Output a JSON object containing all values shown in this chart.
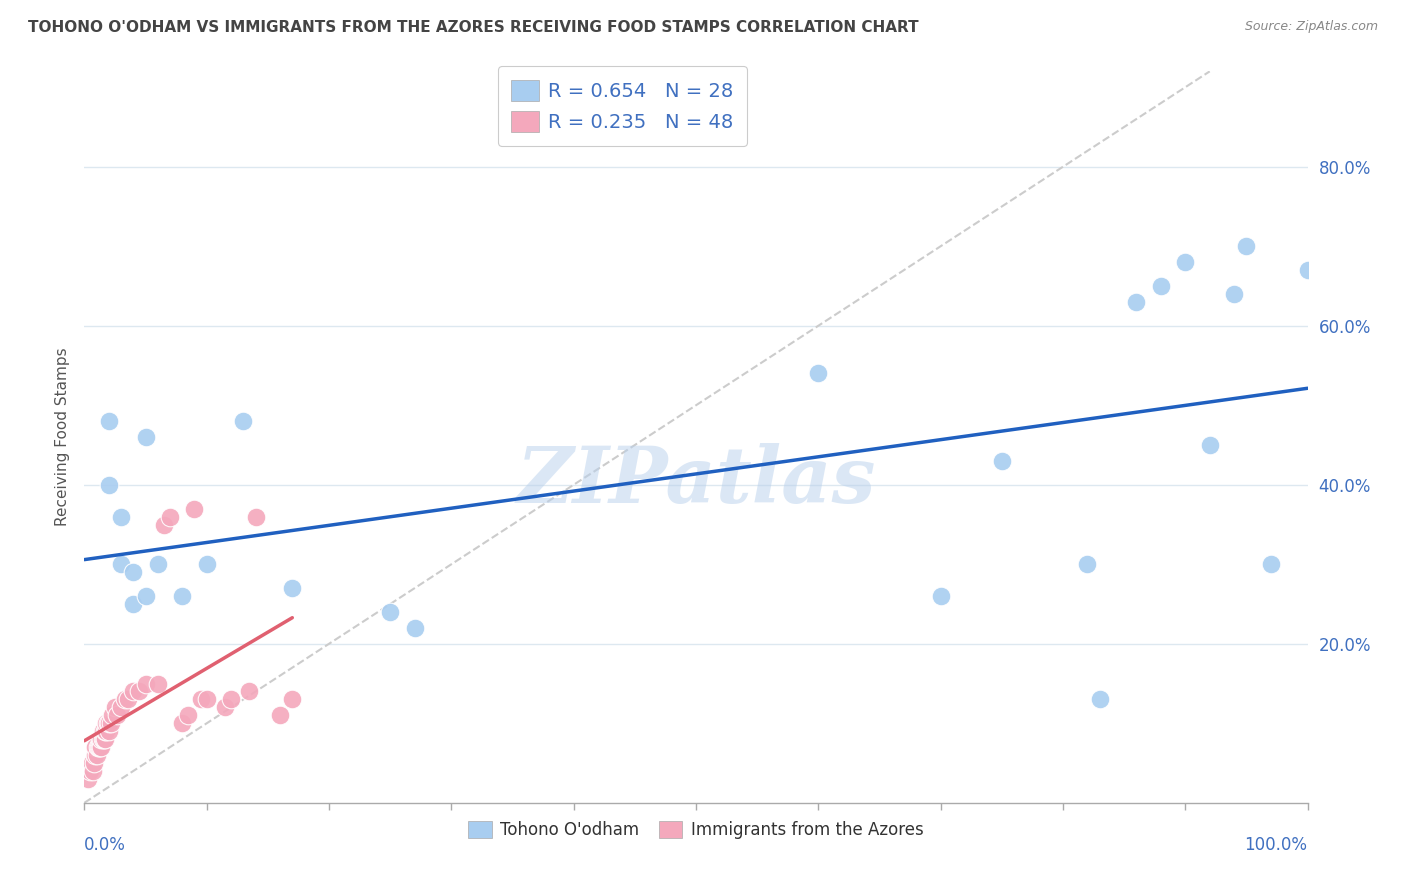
{
  "title": "TOHONO O'ODHAM VS IMMIGRANTS FROM THE AZORES RECEIVING FOOD STAMPS CORRELATION CHART",
  "source": "Source: ZipAtlas.com",
  "ylabel": "Receiving Food Stamps",
  "watermark": "ZIPatlas",
  "blue_color": "#a8cdf0",
  "pink_color": "#f4a8bc",
  "blue_line_color": "#2060c0",
  "pink_line_color": "#e06070",
  "diag_color": "#cccccc",
  "legend_r_blue": "R = 0.654",
  "legend_n_blue": "N = 28",
  "legend_r_pink": "R = 0.235",
  "legend_n_pink": "N = 48",
  "legend_label_blue": "Tohono O'odham",
  "legend_label_pink": "Immigrants from the Azores",
  "blue_x": [
    0.02,
    0.02,
    0.03,
    0.03,
    0.04,
    0.05,
    0.06,
    0.08,
    0.1,
    0.13,
    0.17,
    0.25,
    0.27,
    0.6,
    0.7,
    0.75,
    0.82,
    0.83,
    0.86,
    0.88,
    0.9,
    0.92,
    0.94,
    0.95,
    0.97,
    1.0,
    0.04,
    0.05
  ],
  "blue_y": [
    0.48,
    0.4,
    0.36,
    0.3,
    0.25,
    0.46,
    0.3,
    0.26,
    0.3,
    0.48,
    0.27,
    0.24,
    0.22,
    0.54,
    0.26,
    0.43,
    0.3,
    0.13,
    0.63,
    0.65,
    0.68,
    0.45,
    0.64,
    0.7,
    0.3,
    0.67,
    0.29,
    0.26
  ],
  "pink_x": [
    0.003,
    0.005,
    0.006,
    0.007,
    0.008,
    0.009,
    0.009,
    0.01,
    0.011,
    0.012,
    0.013,
    0.013,
    0.014,
    0.014,
    0.015,
    0.015,
    0.016,
    0.017,
    0.017,
    0.018,
    0.018,
    0.019,
    0.02,
    0.02,
    0.022,
    0.023,
    0.025,
    0.027,
    0.03,
    0.033,
    0.036,
    0.04,
    0.045,
    0.05,
    0.06,
    0.065,
    0.07,
    0.08,
    0.085,
    0.09,
    0.095,
    0.1,
    0.115,
    0.12,
    0.135,
    0.14,
    0.16,
    0.17
  ],
  "pink_y": [
    0.03,
    0.04,
    0.05,
    0.04,
    0.05,
    0.06,
    0.07,
    0.06,
    0.07,
    0.07,
    0.07,
    0.08,
    0.07,
    0.08,
    0.08,
    0.09,
    0.08,
    0.08,
    0.09,
    0.09,
    0.1,
    0.1,
    0.09,
    0.1,
    0.1,
    0.11,
    0.12,
    0.11,
    0.12,
    0.13,
    0.13,
    0.14,
    0.14,
    0.15,
    0.15,
    0.35,
    0.36,
    0.1,
    0.11,
    0.37,
    0.13,
    0.13,
    0.12,
    0.13,
    0.14,
    0.36,
    0.11,
    0.13
  ],
  "background_color": "#ffffff",
  "grid_color": "#dde8f0",
  "title_color": "#444444",
  "axis_label_color": "#4070c0",
  "legend_text_color": "#4070c0",
  "xlim": [
    0.0,
    1.0
  ],
  "ylim": [
    0.0,
    0.92
  ],
  "ytick_vals": [
    0.2,
    0.4,
    0.6,
    0.8
  ],
  "xtick_vals": [
    0.0,
    0.1,
    0.2,
    0.3,
    0.4,
    0.5,
    0.6,
    0.7,
    0.8,
    0.9,
    1.0
  ]
}
